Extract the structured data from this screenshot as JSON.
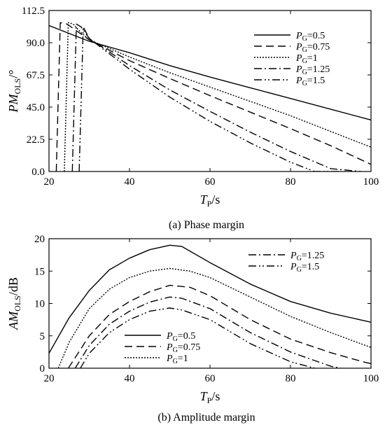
{
  "chart_data": [
    {
      "type": "line",
      "caption": "(a) Phase margin",
      "xlabel": "T",
      "xlabel_sub": "P",
      "xlabel_unit": "/s",
      "ylabel": "PM",
      "ylabel_sub": "OLS",
      "ylabel_unit": "/°",
      "xlim": [
        20,
        100
      ],
      "ylim": [
        0,
        112.5
      ],
      "xticks": [
        "20",
        "40",
        "60",
        "80",
        "100"
      ],
      "yticks": [
        "0.0",
        "22.5",
        "45.0",
        "67.5",
        "90.0",
        "112.5"
      ],
      "legend_placement": "top-right",
      "grid": false,
      "series": [
        {
          "name": "P",
          "name_sub": "G",
          "name_value": "=0.5",
          "dash": "",
          "x": [
            20,
            30,
            40,
            50,
            60,
            70,
            80,
            90,
            100
          ],
          "y": [
            102,
            91,
            83,
            74,
            66,
            58.5,
            51,
            43.5,
            36
          ]
        },
        {
          "name": "P",
          "name_sub": "G",
          "name_value": "=0.75",
          "dash": "11,6",
          "x": [
            21.8,
            22.8,
            24.5,
            26,
            30,
            40,
            50,
            60,
            70,
            80,
            90,
            100
          ],
          "y": [
            0,
            104,
            103,
            100,
            92,
            77.5,
            65,
            53,
            41.5,
            30,
            18,
            5
          ]
        },
        {
          "name": "P",
          "name_sub": "G",
          "name_value": "=1",
          "dash": "2,2",
          "x": [
            23.8,
            24.8,
            26,
            28,
            30,
            40,
            50,
            60,
            70,
            80,
            90,
            100
          ],
          "y": [
            0,
            104,
            103,
            97,
            92,
            80,
            69,
            59,
            49,
            39,
            28,
            17
          ]
        },
        {
          "name": "P",
          "name_sub": "G",
          "name_value": "=1.25",
          "dash": "11,4,2,4",
          "x": [
            25.8,
            26.8,
            28,
            30,
            40,
            50,
            60,
            70,
            80,
            90,
            97.5
          ],
          "y": [
            0,
            103,
            101,
            93,
            74,
            57,
            42,
            27.5,
            14,
            2,
            0
          ]
        },
        {
          "name": "P",
          "name_sub": "G",
          "name_value": "=1.5",
          "dash": "11,4,2,3,2,4",
          "x": [
            27.5,
            28.5,
            30,
            40,
            50,
            60,
            70,
            80,
            86,
            92.5
          ],
          "y": [
            0,
            101,
            93,
            71.5,
            52,
            35,
            20,
            6.5,
            0,
            0
          ]
        }
      ]
    },
    {
      "type": "line",
      "caption": "(b) Amplitude margin",
      "xlabel": "T",
      "xlabel_sub": "P",
      "xlabel_unit": "/s",
      "ylabel": "AM",
      "ylabel_sub": "OLS",
      "ylabel_unit": "/dB",
      "xlim": [
        20,
        100
      ],
      "ylim": [
        0,
        20
      ],
      "xticks": [
        "20",
        "40",
        "60",
        "80",
        "100"
      ],
      "yticks": [
        "0",
        "5",
        "10",
        "15",
        "20"
      ],
      "legend_placement": "top-right and lower-left",
      "grid": false,
      "series": [
        {
          "name": "P",
          "name_sub": "G",
          "name_value": "=0.5",
          "dash": "",
          "x": [
            20,
            25,
            30,
            35,
            40,
            45,
            50,
            53,
            60,
            70,
            80,
            90,
            100
          ],
          "y": [
            2.3,
            7.8,
            12,
            15.2,
            17,
            18.3,
            19,
            18.8,
            16.3,
            13,
            10.3,
            8.5,
            7.1
          ]
        },
        {
          "name": "P",
          "name_sub": "G",
          "name_value": "=0.75",
          "dash": "11,6",
          "x": [
            24.8,
            30,
            35,
            40,
            45,
            50,
            55,
            60,
            70,
            80,
            90,
            98,
            100
          ],
          "y": [
            0,
            5,
            8.3,
            10.3,
            11.8,
            12.8,
            12.5,
            11.2,
            7.5,
            4.5,
            2.4,
            1,
            0.7
          ]
        },
        {
          "name": "P",
          "name_sub": "G",
          "name_value": "=1",
          "dash": "2,2",
          "x": [
            22.3,
            25,
            30,
            35,
            40,
            45,
            50,
            55,
            60,
            70,
            80,
            90,
            100
          ],
          "y": [
            0,
            4,
            9.2,
            12.2,
            14,
            15,
            15.4,
            15,
            14,
            11,
            8,
            5.5,
            3.2
          ]
        },
        {
          "name": "P",
          "name_sub": "G",
          "name_value": "=1.25",
          "dash": "11,4,2,4",
          "x": [
            26.5,
            30,
            35,
            40,
            45,
            50,
            53,
            60,
            70,
            80,
            90,
            92.5
          ],
          "y": [
            0,
            3.5,
            6.8,
            8.8,
            10.2,
            11,
            10.8,
            9.2,
            5.5,
            2.5,
            0.3,
            0
          ]
        },
        {
          "name": "P",
          "name_sub": "G",
          "name_value": "=1.5",
          "dash": "11,4,2,3,2,4",
          "x": [
            27.8,
            30,
            35,
            40,
            45,
            50,
            53,
            60,
            70,
            80,
            86
          ],
          "y": [
            0,
            2.3,
            5.5,
            7.5,
            8.8,
            9.3,
            9,
            7.5,
            3.8,
            1,
            0
          ]
        }
      ]
    }
  ]
}
